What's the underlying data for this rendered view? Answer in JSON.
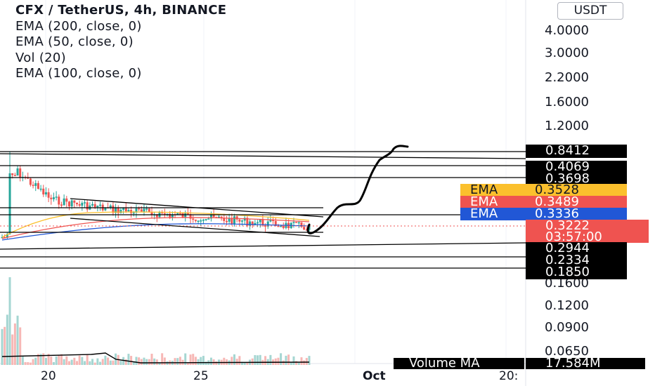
{
  "legend": {
    "title": "CFX / TetherUS, 4h, BINANCE",
    "indicators": [
      "EMA (200, close, 0)",
      "EMA (50, close, 0)",
      "Vol (20)",
      "EMA (100, close, 0)"
    ]
  },
  "currency_button": "USDT",
  "price_axis_ticks": [
    "4.0000",
    "3.0000",
    "2.2000",
    "1.6000",
    "1.2000",
    "0.1600",
    "0.1200",
    "0.0900",
    "0.0650"
  ],
  "price_badges": [
    {
      "label": "",
      "value": "0.8412",
      "color": "#000000"
    },
    {
      "label": "",
      "value": "0.4069",
      "color": "#000000"
    },
    {
      "label": "",
      "value": "0.3698",
      "color": "#000000"
    },
    {
      "label": "EMA",
      "value": "0.3528",
      "color": "#fbc02d",
      "text_color": "#131722"
    },
    {
      "label": "EMA",
      "value": "0.3489",
      "color": "#ef5350",
      "text_color": "#ffffff"
    },
    {
      "label": "EMA",
      "value": "0.3336",
      "color": "#2157d6",
      "text_color": "#ffffff"
    },
    {
      "label": "",
      "value": "0.3222",
      "color": "#ef5350"
    },
    {
      "label": "",
      "value": "03:57:00",
      "color": "#ef5350"
    },
    {
      "label": "",
      "value": "0.2944",
      "color": "#000000"
    },
    {
      "label": "",
      "value": "0.2334",
      "color": "#000000"
    },
    {
      "label": "",
      "value": "0.1850",
      "color": "#000000"
    }
  ],
  "volume_badge": {
    "label": "Volume MA",
    "value": "17.584M"
  },
  "time_axis_ticks": [
    "20",
    "25",
    "Oct",
    "20:"
  ],
  "colors": {
    "up": "#26a69a",
    "down": "#ef5350",
    "ema200": "#2157d6",
    "ema50": "#fbc02d",
    "ema100": "#ef5350",
    "volume_up": "#a5d6d2",
    "volume_down": "#f7b7b5",
    "drawing": "#000000"
  }
}
